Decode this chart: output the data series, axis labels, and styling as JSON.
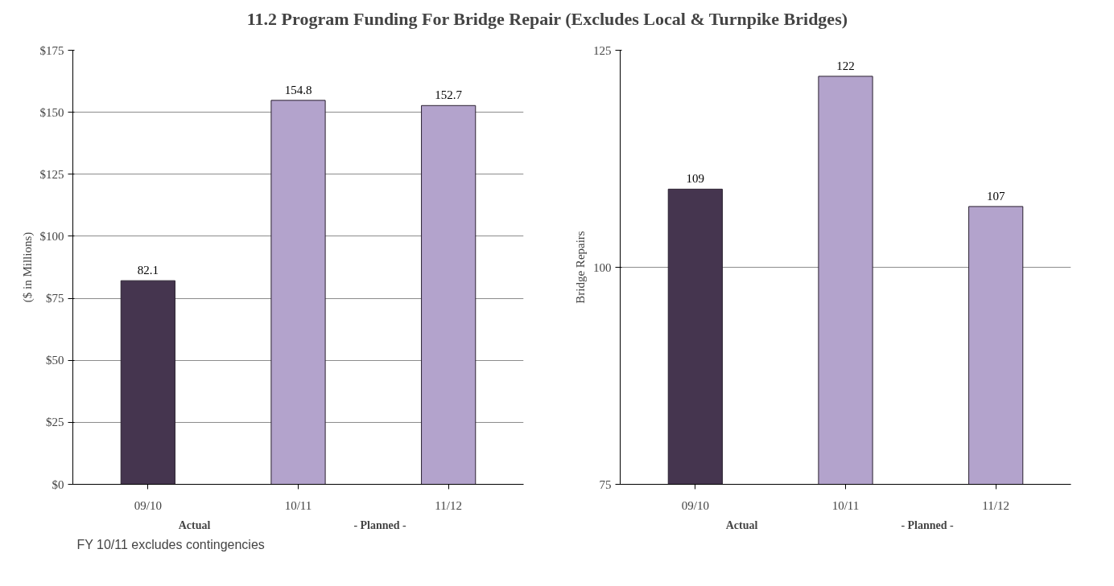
{
  "chart_data": [
    {
      "type": "bar",
      "title": "11.2 Program Funding For Bridge Repair (Excludes Local & Turnpike Bridges)",
      "ylabel": "($ in Millions)",
      "categories": [
        "09/10",
        "10/11",
        "11/12"
      ],
      "values": [
        82.1,
        154.8,
        152.7
      ],
      "colors": [
        "#45354f",
        "#b3a3cc",
        "#b3a3cc"
      ],
      "ylim": [
        0,
        175
      ],
      "yticks": [
        {
          "value": 0,
          "label": "$0"
        },
        {
          "value": 25,
          "label": "$25"
        },
        {
          "value": 50,
          "label": "$50"
        },
        {
          "value": 75,
          "label": "$75"
        },
        {
          "value": 100,
          "label": "$100"
        },
        {
          "value": 125,
          "label": "$125"
        },
        {
          "value": 150,
          "label": "$150"
        },
        {
          "value": 175,
          "label": "$175"
        }
      ],
      "grid": "y",
      "data_labels": true,
      "annotations": [
        "Actual",
        "- Planned -",
        "FY 10/11 excludes contingencies"
      ]
    },
    {
      "type": "bar",
      "ylabel": "Bridge Repairs",
      "categories": [
        "09/10",
        "10/11",
        "11/12"
      ],
      "values": [
        109,
        122,
        107
      ],
      "colors": [
        "#45354f",
        "#b3a3cc",
        "#b3a3cc"
      ],
      "ylim": [
        75,
        125
      ],
      "yticks": [
        75,
        100,
        125
      ],
      "grid": "y",
      "data_labels": true,
      "annotations": [
        "Actual",
        "- Planned -"
      ]
    }
  ]
}
